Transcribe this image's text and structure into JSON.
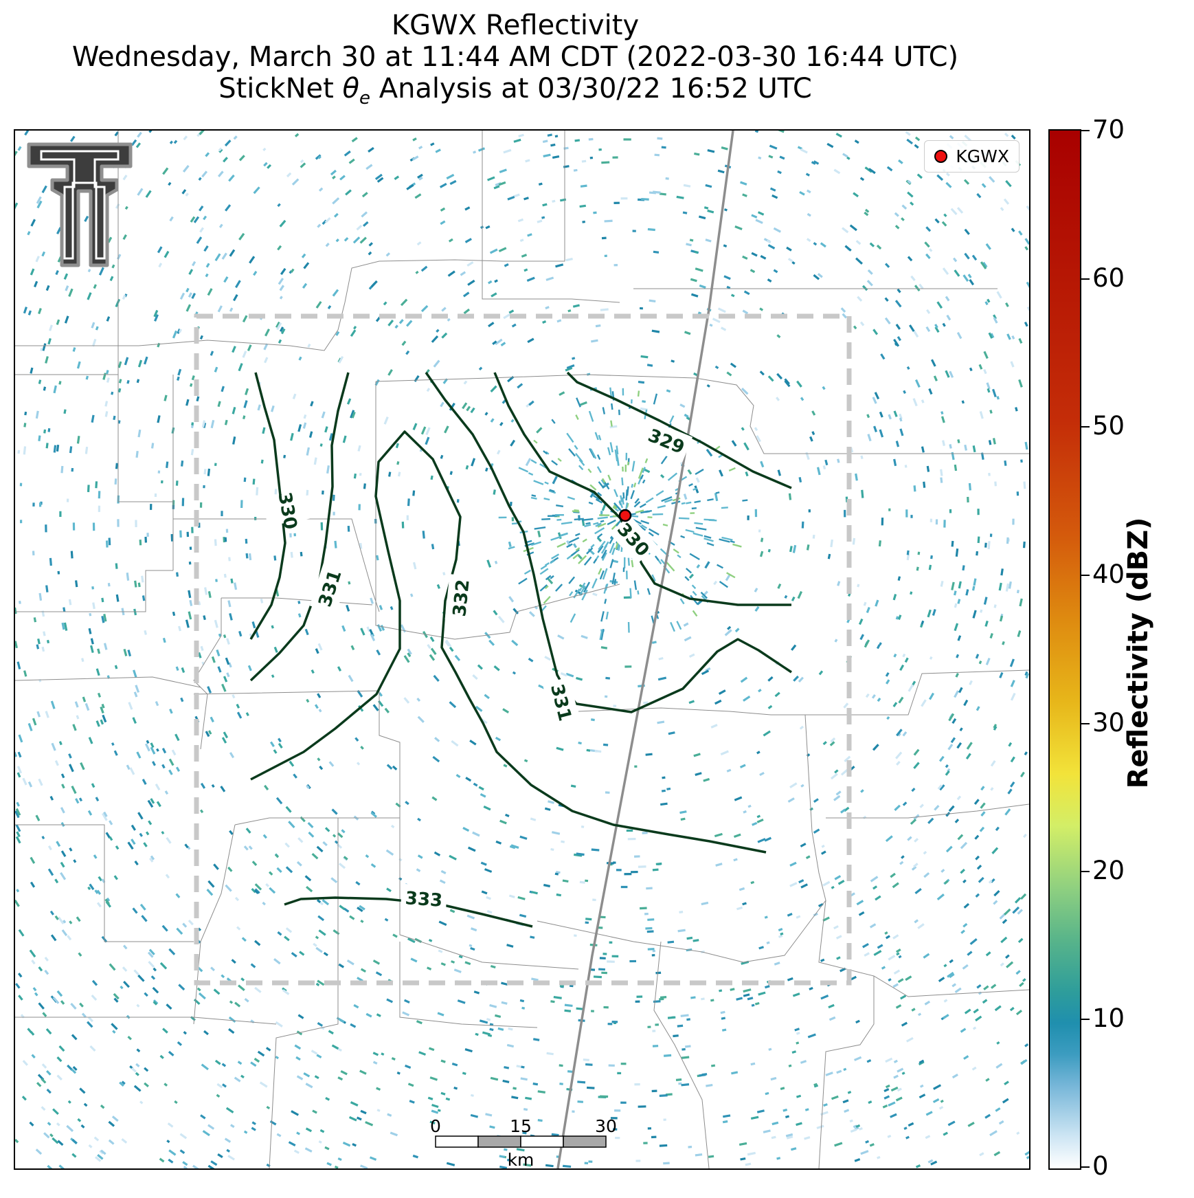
{
  "title": {
    "line1": "KGWX Reflectivity",
    "line2": "Wednesday, March 30 at 11:44 AM CDT (2022-03-30 16:44 UTC)",
    "line3_prefix": "StickNet ",
    "line3_symbol": "θ",
    "line3_subscript": "e",
    "line3_suffix": " Analysis at 03/30/22 16:52 UTC"
  },
  "legend": {
    "label": "KGWX",
    "marker_color": "#ee1111"
  },
  "colorbar": {
    "label": "Reflectivity (dBZ)",
    "ticks": [
      "0",
      "10",
      "20",
      "30",
      "40",
      "50",
      "60",
      "70"
    ],
    "range": [
      0,
      70
    ],
    "colors": [
      "#ffffff",
      "#3c9cc0",
      "#1f8fae",
      "#58b48a",
      "#d3ee67",
      "#e7b61a",
      "#d45a0c",
      "#a80000"
    ]
  },
  "contours": {
    "variable": "StickNet θe",
    "levels": [
      "329",
      "330",
      "331",
      "332",
      "333"
    ],
    "line_color": "#0a3a1c"
  },
  "scale_bar": {
    "ticks": [
      "0",
      "15",
      "30"
    ],
    "unit": "km"
  },
  "radar_site": {
    "name": "KGWX"
  },
  "colors": {
    "analysis_box": "#c8c8c8",
    "speckle_primary": "#2f93b6",
    "speckle_secondary": "#3aa8a0"
  },
  "logo": {
    "name": "texas-tech-double-t-logo"
  }
}
